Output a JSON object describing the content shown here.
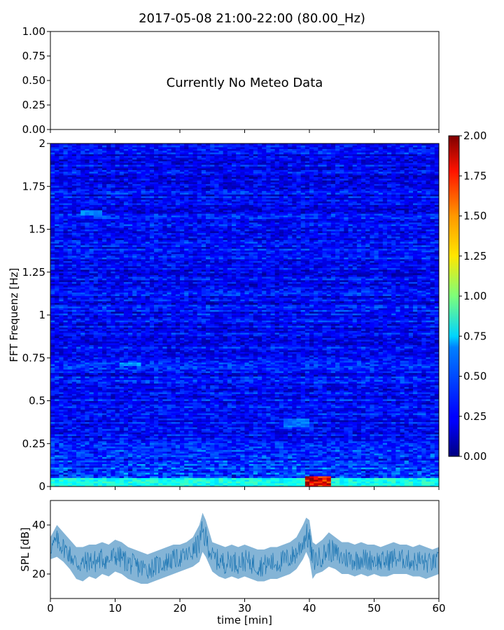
{
  "chart_data": [
    {
      "type": "text",
      "panel": "meteo",
      "title": "2017-05-08 21:00-22:00 (80.00_Hz)",
      "message": "Currently No Meteo Data",
      "ylim": [
        0,
        1
      ],
      "yticks": [
        "0.00",
        "0.25",
        "0.50",
        "0.75",
        "1.00"
      ],
      "grid": false
    },
    {
      "type": "heatmap",
      "panel": "spectrogram",
      "ylabel": "FFT Frequenz [Hz]",
      "xlim": [
        0,
        60
      ],
      "ylim": [
        0,
        2
      ],
      "yticks": [
        "0",
        "0.25",
        "0.5",
        "0.75",
        "1",
        "1.25",
        "1.5",
        "1.75",
        "2"
      ],
      "colormap": "jet",
      "colorbar": {
        "range": [
          0,
          2
        ],
        "ticks": [
          "0.00",
          "0.25",
          "0.50",
          "0.75",
          "1.00",
          "1.25",
          "1.50",
          "1.75",
          "2.00"
        ]
      },
      "background_level": 0.25,
      "features": [
        {
          "x_range": [
            0,
            60
          ],
          "y_range": [
            0,
            0.05
          ],
          "level": 0.9
        },
        {
          "x_range": [
            39.5,
            43
          ],
          "y_range": [
            0,
            0.06
          ],
          "level": 2.0
        },
        {
          "x_range": [
            36,
            40
          ],
          "y_range": [
            0.35,
            0.4
          ],
          "level": 0.55
        },
        {
          "x_range": [
            5,
            8
          ],
          "y_range": [
            1.58,
            1.61
          ],
          "level": 0.6
        },
        {
          "x_range": [
            11,
            14
          ],
          "y_range": [
            0.7,
            0.72
          ],
          "level": 0.65
        }
      ],
      "grid": false
    },
    {
      "type": "area",
      "panel": "spl",
      "xlabel": "time [min]",
      "ylabel": "SPL [dB]",
      "xlim": [
        0,
        60
      ],
      "ylim": [
        10,
        50
      ],
      "xticks": [
        "0",
        "10",
        "20",
        "30",
        "40",
        "50",
        "60"
      ],
      "yticks": [
        "20",
        "40"
      ],
      "color": "#1f77b4",
      "series": [
        {
          "x": [
            0,
            1,
            2,
            3,
            4,
            5,
            6,
            7,
            8,
            9,
            10,
            11,
            12,
            13,
            14,
            15,
            16,
            17,
            18,
            19,
            20,
            21,
            22,
            23,
            23.5,
            24,
            25,
            26,
            27,
            28,
            29,
            30,
            31,
            32,
            33,
            34,
            35,
            36,
            37,
            38,
            39,
            39.5,
            40,
            40.5,
            41,
            42,
            43,
            44,
            45,
            46,
            47,
            48,
            49,
            50,
            51,
            52,
            53,
            54,
            55,
            56,
            57,
            58,
            59,
            60
          ],
          "y_upper": [
            35,
            40,
            37,
            34,
            31,
            31,
            32,
            32,
            33,
            32,
            34,
            33,
            31,
            30,
            29,
            28,
            29,
            30,
            31,
            32,
            32,
            33,
            35,
            40,
            45,
            42,
            33,
            32,
            31,
            32,
            31,
            32,
            31,
            30,
            30,
            31,
            31,
            32,
            33,
            35,
            40,
            43,
            42,
            33,
            32,
            34,
            37,
            35,
            33,
            33,
            32,
            33,
            32,
            32,
            31,
            32,
            33,
            32,
            32,
            31,
            32,
            31,
            30,
            31
          ],
          "y_lower": [
            26,
            27,
            25,
            22,
            18,
            17,
            19,
            18,
            20,
            19,
            21,
            20,
            18,
            17,
            16,
            16,
            17,
            18,
            19,
            20,
            21,
            22,
            23,
            25,
            29,
            27,
            21,
            19,
            18,
            19,
            18,
            19,
            18,
            17,
            17,
            18,
            18,
            19,
            20,
            22,
            26,
            29,
            26,
            18,
            20,
            21,
            23,
            22,
            20,
            20,
            19,
            20,
            19,
            20,
            19,
            19,
            20,
            20,
            20,
            19,
            19,
            18,
            19,
            20
          ],
          "y_mid": [
            30,
            34,
            32,
            28,
            25,
            25,
            26,
            25,
            27,
            26,
            28,
            27,
            25,
            24,
            23,
            22,
            23,
            24,
            25,
            26,
            27,
            28,
            29,
            33,
            38,
            35,
            27,
            26,
            25,
            26,
            25,
            26,
            25,
            24,
            24,
            25,
            25,
            26,
            27,
            29,
            34,
            38,
            35,
            24,
            27,
            28,
            31,
            29,
            27,
            27,
            26,
            27,
            26,
            27,
            26,
            26,
            27,
            27,
            27,
            26,
            26,
            25,
            25,
            26
          ]
        }
      ],
      "grid": false
    }
  ]
}
